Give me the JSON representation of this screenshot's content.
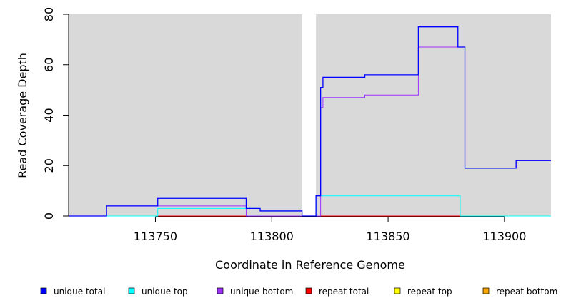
{
  "chart_data": {
    "type": "line",
    "step": true,
    "title": "",
    "xlabel": "Coordinate in Reference Genome",
    "ylabel": "Read Coverage Depth",
    "xlim": [
      113713,
      113920
    ],
    "ylim": [
      0,
      80
    ],
    "x_ticks": [
      113750,
      113800,
      113850,
      113900
    ],
    "y_ticks": [
      0,
      20,
      40,
      60,
      80
    ],
    "grid": false,
    "background": "#d9d9d9",
    "gap": [
      113813,
      113819
    ],
    "legend_position": "bottom",
    "series": [
      {
        "name": "unique total",
        "color": "#0000ff",
        "points": [
          [
            113713,
            0
          ],
          [
            113729,
            4
          ],
          [
            113751,
            7
          ],
          [
            113789,
            3
          ],
          [
            113795,
            2
          ],
          [
            113813,
            0
          ],
          [
            113819,
            8
          ],
          [
            113821,
            51
          ],
          [
            113822,
            55
          ],
          [
            113840,
            56
          ],
          [
            113863,
            75
          ],
          [
            113880,
            67
          ],
          [
            113883,
            19
          ],
          [
            113905,
            22
          ],
          [
            113920,
            22
          ]
        ]
      },
      {
        "name": "unique top",
        "color": "#00ffff",
        "points": [
          [
            113713,
            0
          ],
          [
            113751,
            3
          ],
          [
            113789,
            3
          ],
          [
            113795,
            2
          ],
          [
            113813,
            0
          ],
          [
            113819,
            8
          ],
          [
            113880,
            8
          ],
          [
            113881,
            0
          ],
          [
            113920,
            0
          ]
        ]
      },
      {
        "name": "unique bottom",
        "color": "#9b30ff",
        "points": [
          [
            113713,
            0
          ],
          [
            113729,
            4
          ],
          [
            113789,
            0
          ],
          [
            113821,
            43
          ],
          [
            113822,
            47
          ],
          [
            113840,
            48
          ],
          [
            113863,
            67
          ],
          [
            113883,
            19
          ],
          [
            113905,
            22
          ],
          [
            113920,
            22
          ]
        ]
      },
      {
        "name": "repeat total",
        "color": "#ff0000",
        "points": [
          [
            113713,
            0
          ],
          [
            113920,
            0
          ]
        ]
      },
      {
        "name": "repeat top",
        "color": "#ffff00",
        "points": [
          [
            113713,
            0
          ],
          [
            113920,
            0
          ]
        ]
      },
      {
        "name": "repeat bottom",
        "color": "#ffa500",
        "points": [
          [
            113713,
            0
          ],
          [
            113920,
            0
          ]
        ]
      }
    ]
  }
}
